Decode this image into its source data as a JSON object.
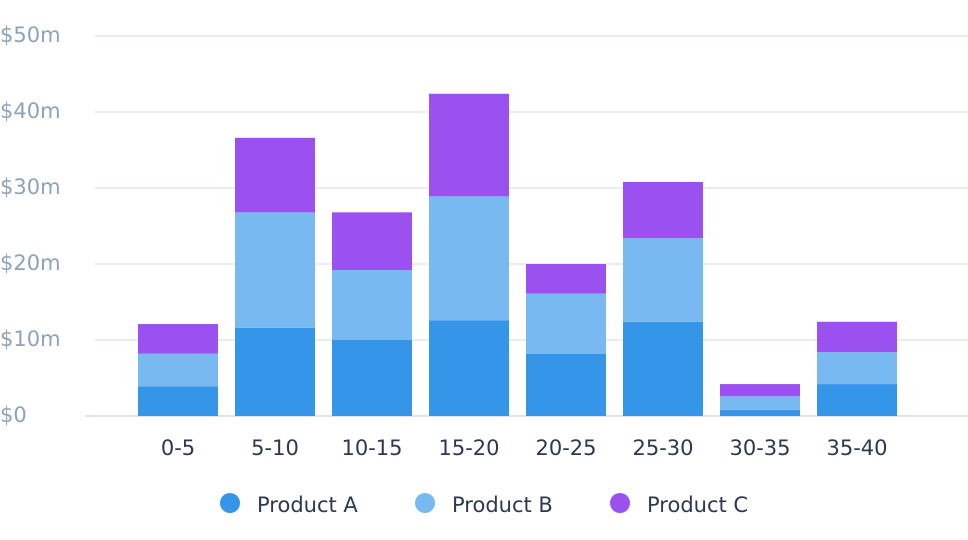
{
  "chart_data": {
    "type": "stacked_bar",
    "categories": [
      "0-5",
      "5-10",
      "10-15",
      "15-20",
      "20-25",
      "25-30",
      "30-35",
      "35-40"
    ],
    "series": [
      {
        "name": "Product A",
        "color": "#3595e8",
        "values": [
          3.9,
          11.6,
          10.0,
          12.6,
          8.2,
          12.4,
          0.8,
          4.2
        ]
      },
      {
        "name": "Product B",
        "color": "#78b9f2",
        "values": [
          4.3,
          15.2,
          9.2,
          16.3,
          7.9,
          11.0,
          1.8,
          4.2
        ]
      },
      {
        "name": "Product C",
        "color": "#9b51f0",
        "values": [
          3.9,
          9.8,
          7.6,
          13.5,
          3.9,
          7.4,
          1.6,
          4.0
        ]
      }
    ],
    "ylim": [
      0,
      50
    ],
    "yticks": [
      {
        "value": 0,
        "label": "$0"
      },
      {
        "value": 10,
        "label": "$10m"
      },
      {
        "value": 20,
        "label": "$20m"
      },
      {
        "value": 30,
        "label": "$30m"
      },
      {
        "value": 40,
        "label": "$40m"
      },
      {
        "value": 50,
        "label": "$50m"
      }
    ],
    "grid": true,
    "legend": "bottom"
  }
}
